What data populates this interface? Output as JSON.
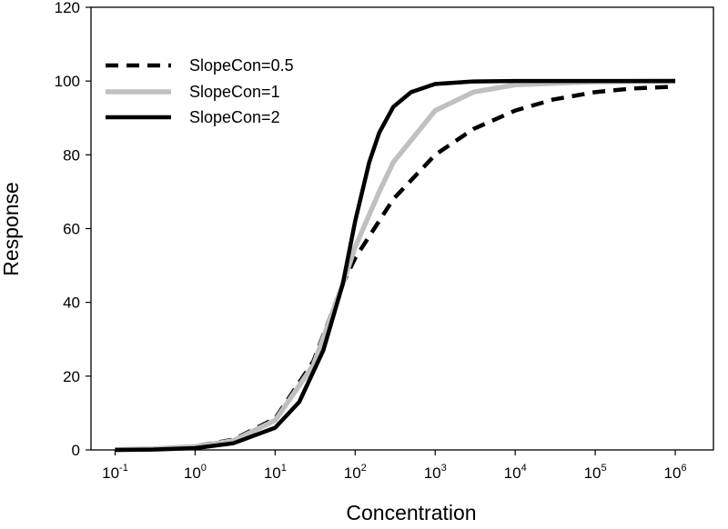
{
  "chart_data": {
    "type": "line",
    "title": "",
    "xlabel": "Concentration",
    "ylabel": "Response",
    "xscale": "log",
    "xlim": [
      0.05,
      3000000
    ],
    "ylim": [
      0,
      120
    ],
    "grid": false,
    "legend_position": "top-left",
    "yticks": [
      0,
      20,
      40,
      60,
      80,
      100,
      120
    ],
    "xticks": [
      {
        "value": 0.1,
        "base": "10",
        "exp": "-1"
      },
      {
        "value": 1,
        "base": "10",
        "exp": "0"
      },
      {
        "value": 10,
        "base": "10",
        "exp": "1"
      },
      {
        "value": 100,
        "base": "10",
        "exp": "2"
      },
      {
        "value": 1000,
        "base": "10",
        "exp": "3"
      },
      {
        "value": 10000,
        "base": "10",
        "exp": "4"
      },
      {
        "value": 100000,
        "base": "10",
        "exp": "5"
      },
      {
        "value": 1000000,
        "base": "10",
        "exp": "6"
      }
    ],
    "series": [
      {
        "name": "SlopeCon=0.5",
        "style": "dashed",
        "color": "#000000",
        "x": [
          0.1,
          0.3,
          1,
          3,
          10,
          30,
          70,
          100,
          300,
          1000,
          3000,
          10000,
          30000,
          100000,
          300000,
          1000000
        ],
        "y": [
          0.1,
          0.3,
          1.0,
          2.8,
          8.5,
          24,
          45,
          52,
          68,
          80,
          87,
          92,
          95,
          97,
          98,
          98.5
        ]
      },
      {
        "name": "SlopeCon=1",
        "style": "solid",
        "color": "#c0c0c0",
        "x": [
          0.1,
          0.3,
          1,
          3,
          10,
          30,
          70,
          100,
          200,
          300,
          1000,
          3000,
          10000,
          100000,
          1000000
        ],
        "y": [
          0.1,
          0.3,
          0.9,
          2.5,
          8,
          23,
          45,
          55,
          70,
          78,
          92,
          97,
          99,
          99.8,
          100
        ]
      },
      {
        "name": "SlopeCon=2",
        "style": "solid",
        "color": "#000000",
        "x": [
          0.1,
          0.3,
          1,
          3,
          10,
          20,
          40,
          70,
          100,
          150,
          200,
          300,
          500,
          1000,
          3000,
          10000,
          1000000
        ],
        "y": [
          0.0,
          0.1,
          0.5,
          1.8,
          6,
          13,
          27,
          45,
          62,
          78,
          86,
          93,
          97,
          99.2,
          99.9,
          100,
          100
        ]
      }
    ]
  }
}
